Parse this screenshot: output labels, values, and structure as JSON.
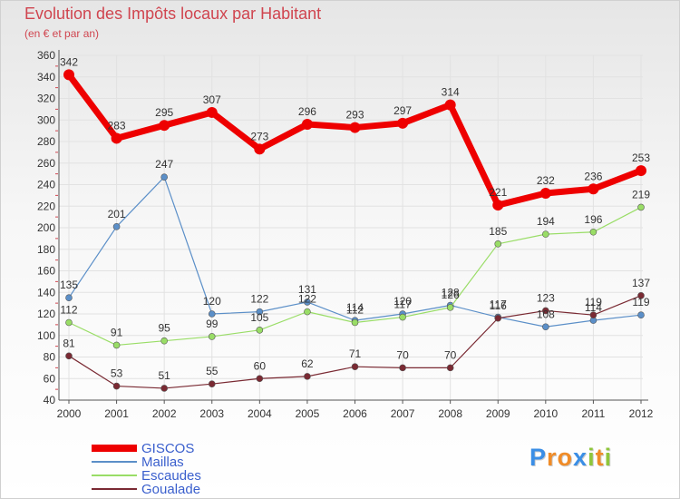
{
  "title": "Evolution des Impôts locaux par Habitant",
  "subtitle": "(en € et par an)",
  "brand": {
    "letters": [
      "P",
      "r",
      "o",
      "x",
      "i",
      "t",
      "i"
    ],
    "colors": [
      "#3a8ee6",
      "#f08c28",
      "#f08c28",
      "#3a8ee6",
      "#8fc63c",
      "#f08c28",
      "#8fc63c"
    ]
  },
  "chart_data": {
    "type": "line",
    "title": "Evolution des Impôts locaux par Habitant",
    "subtitle": "(en € et par an)",
    "xlabel": "",
    "ylabel": "",
    "categories": [
      "2000",
      "2001",
      "2002",
      "2003",
      "2004",
      "2005",
      "2006",
      "2007",
      "2008",
      "2009",
      "2010",
      "2011",
      "2012"
    ],
    "ylim": [
      40,
      360
    ],
    "yticks": [
      40,
      60,
      80,
      100,
      120,
      140,
      160,
      180,
      200,
      220,
      240,
      260,
      280,
      300,
      320,
      340,
      360
    ],
    "grid": true,
    "legend_position": "bottom-left",
    "series": [
      {
        "name": "GISCOS",
        "color": "#ee0000",
        "values": [
          342,
          283,
          295,
          307,
          273,
          296,
          293,
          297,
          314,
          221,
          232,
          236,
          253
        ]
      },
      {
        "name": "Maillas",
        "color": "#5b8fc8",
        "values": [
          135,
          201,
          247,
          120,
          122,
          131,
          114,
          120,
          128,
          117,
          108,
          114,
          119
        ]
      },
      {
        "name": "Escaudes",
        "color": "#99dd66",
        "values": [
          112,
          91,
          95,
          99,
          105,
          122,
          112,
          117,
          126,
          185,
          194,
          196,
          219
        ]
      },
      {
        "name": "Goualade",
        "color": "#7a2a33",
        "values": [
          81,
          53,
          51,
          55,
          60,
          62,
          71,
          70,
          70,
          116,
          123,
          119,
          137
        ]
      }
    ]
  }
}
